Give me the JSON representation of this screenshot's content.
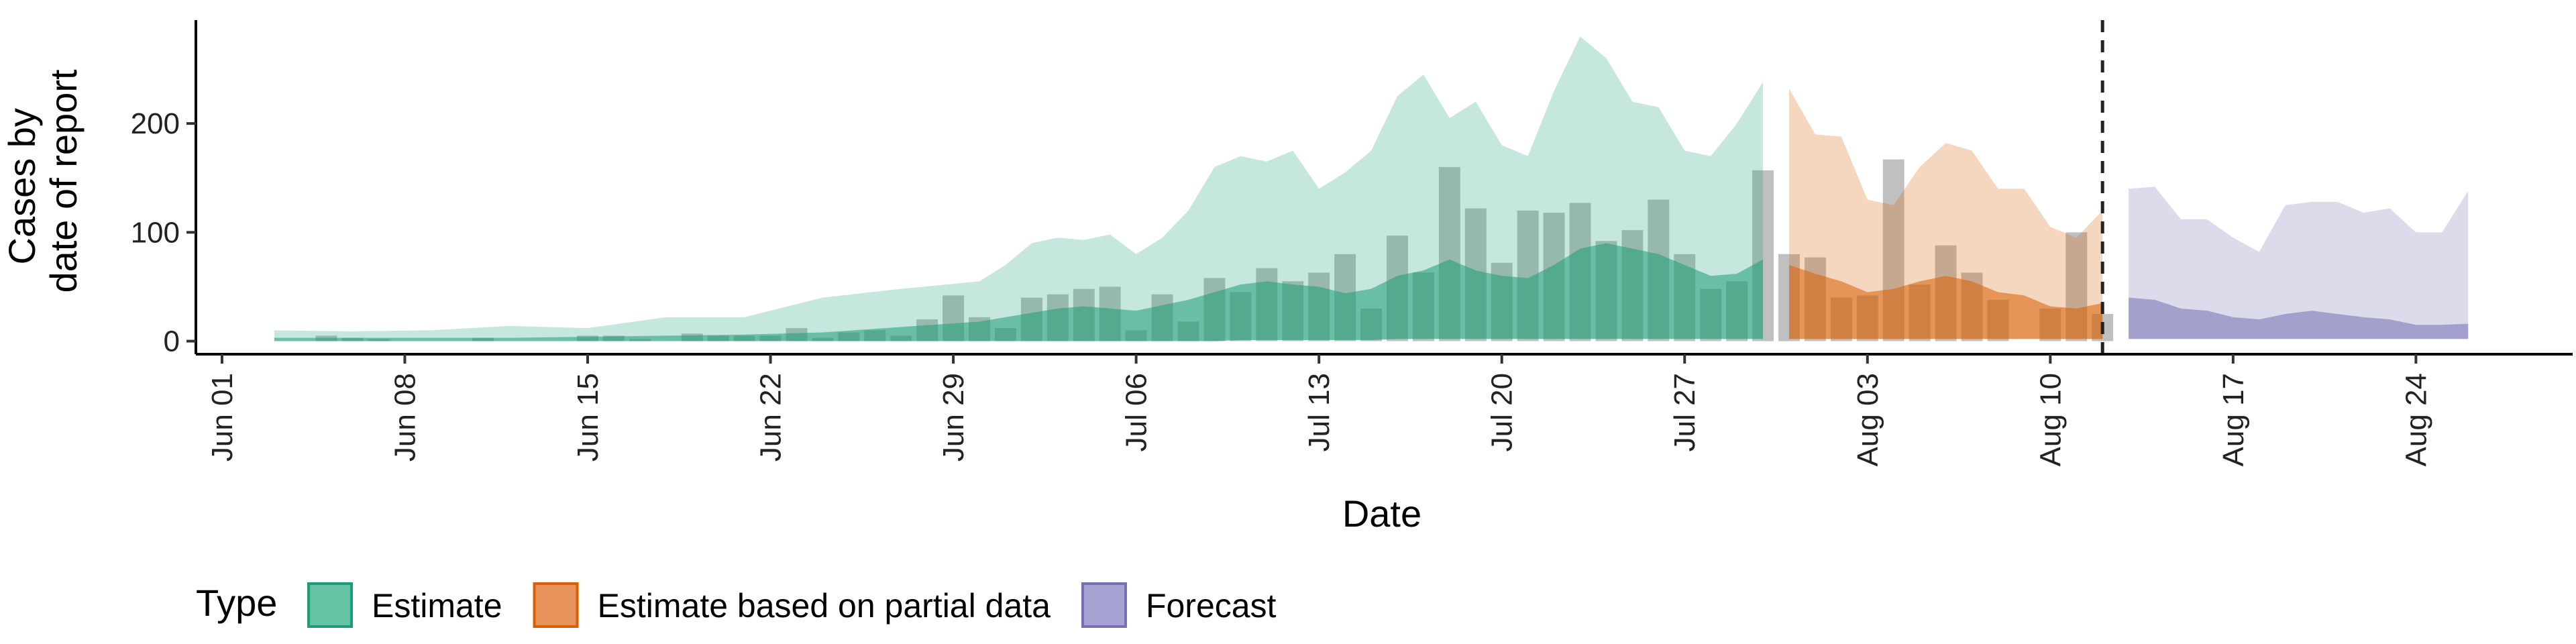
{
  "chart_data": {
    "type": "area",
    "xlabel": "Date",
    "ylabel_lines": [
      "Cases by",
      "date of report"
    ],
    "x_start_date": "2020-06-01",
    "xlim": [
      "2020-05-31",
      "2020-08-30"
    ],
    "ylim": [
      -12,
      295
    ],
    "y_ticks": [
      0,
      100,
      200
    ],
    "y_tick_labels": [
      "0",
      "100",
      "200"
    ],
    "x_ticks": [
      "2020-06-01",
      "2020-06-08",
      "2020-06-15",
      "2020-06-22",
      "2020-06-29",
      "2020-07-06",
      "2020-07-13",
      "2020-07-20",
      "2020-07-27",
      "2020-08-03",
      "2020-08-10",
      "2020-08-17",
      "2020-08-24"
    ],
    "x_tick_labels": [
      "Jun 01",
      "Jun 08",
      "Jun 15",
      "Jun 22",
      "Jun 29",
      "Jul 06",
      "Jul 13",
      "Jul 20",
      "Jul 27",
      "Aug 03",
      "Aug 10",
      "Aug 17",
      "Aug 24"
    ],
    "forecast_line_date": "2020-08-12",
    "legend": {
      "title": "Type",
      "position": "bottom-left",
      "items": [
        {
          "label": "Estimate",
          "fill": "#66c2a5",
          "stroke": "#1b9e77"
        },
        {
          "label": "Estimate based on partial data",
          "fill": "#e8935b",
          "stroke": "#d95f02"
        },
        {
          "label": "Forecast",
          "fill": "#a6a3d2",
          "stroke": "#7570b3"
        }
      ]
    },
    "colors": {
      "estimate": "#1b9e77",
      "partial": "#d95f02",
      "forecast": "#7570b3",
      "bars": "#8c8c8c"
    },
    "bars": {
      "dates": [
        "2020-06-01",
        "2020-06-02",
        "2020-06-03",
        "2020-06-04",
        "2020-06-05",
        "2020-06-06",
        "2020-06-07",
        "2020-06-08",
        "2020-06-09",
        "2020-06-10",
        "2020-06-11",
        "2020-06-12",
        "2020-06-13",
        "2020-06-14",
        "2020-06-15",
        "2020-06-16",
        "2020-06-17",
        "2020-06-18",
        "2020-06-19",
        "2020-06-20",
        "2020-06-21",
        "2020-06-22",
        "2020-06-23",
        "2020-06-24",
        "2020-06-25",
        "2020-06-26",
        "2020-06-27",
        "2020-06-28",
        "2020-06-29",
        "2020-06-30",
        "2020-07-01",
        "2020-07-02",
        "2020-07-03",
        "2020-07-04",
        "2020-07-05",
        "2020-07-06",
        "2020-07-07",
        "2020-07-08",
        "2020-07-09",
        "2020-07-10",
        "2020-07-11",
        "2020-07-12",
        "2020-07-13",
        "2020-07-14",
        "2020-07-15",
        "2020-07-16",
        "2020-07-17",
        "2020-07-18",
        "2020-07-19",
        "2020-07-20",
        "2020-07-21",
        "2020-07-22",
        "2020-07-23",
        "2020-07-24",
        "2020-07-25",
        "2020-07-26",
        "2020-07-27",
        "2020-07-28",
        "2020-07-29",
        "2020-07-30",
        "2020-07-31",
        "2020-08-01",
        "2020-08-02",
        "2020-08-03",
        "2020-08-04",
        "2020-08-05",
        "2020-08-06",
        "2020-08-07",
        "2020-08-08",
        "2020-08-09",
        "2020-08-10",
        "2020-08-11",
        "2020-08-12"
      ],
      "values": [
        0,
        0,
        0,
        0,
        5,
        3,
        2,
        0,
        0,
        0,
        3,
        0,
        0,
        0,
        5,
        5,
        2,
        0,
        7,
        5,
        5,
        5,
        12,
        3,
        8,
        10,
        5,
        20,
        42,
        22,
        12,
        40,
        43,
        48,
        50,
        10,
        43,
        18,
        58,
        45,
        67,
        55,
        63,
        80,
        30,
        97,
        63,
        160,
        122,
        72,
        120,
        118,
        127,
        92,
        102,
        130,
        80,
        48,
        55,
        157,
        80,
        77,
        40,
        42,
        167,
        52,
        88,
        63,
        38,
        0,
        30,
        100,
        25
      ]
    },
    "series": [
      {
        "name": "Estimate",
        "type": "ribbon",
        "dates": [
          "2020-06-03",
          "2020-06-06",
          "2020-06-09",
          "2020-06-12",
          "2020-06-15",
          "2020-06-18",
          "2020-06-21",
          "2020-06-24",
          "2020-06-27",
          "2020-06-30",
          "2020-07-01",
          "2020-07-02",
          "2020-07-03",
          "2020-07-04",
          "2020-07-05",
          "2020-07-06",
          "2020-07-07",
          "2020-07-08",
          "2020-07-09",
          "2020-07-10",
          "2020-07-11",
          "2020-07-12",
          "2020-07-13",
          "2020-07-14",
          "2020-07-15",
          "2020-07-16",
          "2020-07-17",
          "2020-07-18",
          "2020-07-19",
          "2020-07-20",
          "2020-07-21",
          "2020-07-22",
          "2020-07-23",
          "2020-07-24",
          "2020-07-25",
          "2020-07-26",
          "2020-07-27",
          "2020-07-28",
          "2020-07-29",
          "2020-07-30"
        ],
        "lower": [
          0,
          0,
          0,
          0,
          0,
          0,
          0,
          0,
          0,
          0,
          0,
          0,
          0,
          0,
          0,
          0,
          0,
          0,
          0,
          1,
          1,
          1,
          1,
          1,
          1,
          2,
          2,
          2,
          2,
          2,
          2,
          2,
          2,
          2,
          2,
          2,
          2,
          2,
          2,
          2
        ],
        "inner_upper": [
          3,
          3,
          3,
          3,
          4,
          5,
          6,
          8,
          13,
          18,
          22,
          26,
          30,
          32,
          30,
          28,
          33,
          38,
          45,
          52,
          55,
          52,
          50,
          44,
          48,
          60,
          65,
          75,
          65,
          60,
          58,
          70,
          85,
          90,
          85,
          80,
          70,
          60,
          62,
          75
        ],
        "upper": [
          10,
          9,
          10,
          14,
          12,
          22,
          22,
          40,
          48,
          55,
          70,
          90,
          95,
          93,
          98,
          80,
          95,
          120,
          160,
          170,
          165,
          175,
          140,
          155,
          175,
          225,
          245,
          205,
          220,
          180,
          170,
          230,
          280,
          260,
          220,
          215,
          175,
          170,
          200,
          238
        ]
      },
      {
        "name": "Estimate based on partial data",
        "type": "ribbon",
        "dates": [
          "2020-07-31",
          "2020-08-01",
          "2020-08-02",
          "2020-08-03",
          "2020-08-04",
          "2020-08-05",
          "2020-08-06",
          "2020-08-07",
          "2020-08-08",
          "2020-08-09",
          "2020-08-10",
          "2020-08-11",
          "2020-08-12"
        ],
        "lower": [
          2,
          2,
          2,
          2,
          2,
          2,
          2,
          2,
          2,
          2,
          2,
          2,
          2
        ],
        "inner_upper": [
          70,
          62,
          55,
          45,
          48,
          55,
          60,
          55,
          45,
          42,
          32,
          30,
          35
        ],
        "upper": [
          232,
          190,
          188,
          130,
          125,
          160,
          182,
          175,
          140,
          140,
          105,
          95,
          120
        ]
      },
      {
        "name": "Forecast",
        "type": "ribbon",
        "dates": [
          "2020-08-13",
          "2020-08-14",
          "2020-08-15",
          "2020-08-16",
          "2020-08-17",
          "2020-08-18",
          "2020-08-19",
          "2020-08-20",
          "2020-08-21",
          "2020-08-22",
          "2020-08-23",
          "2020-08-24",
          "2020-08-25",
          "2020-08-26"
        ],
        "lower": [
          2,
          2,
          2,
          2,
          2,
          2,
          2,
          2,
          2,
          2,
          2,
          2,
          2,
          2
        ],
        "inner_upper": [
          40,
          38,
          30,
          28,
          22,
          20,
          25,
          28,
          25,
          22,
          20,
          15,
          15,
          16
        ],
        "upper": [
          140,
          142,
          112,
          112,
          95,
          82,
          125,
          128,
          128,
          118,
          122,
          100,
          100,
          138
        ]
      }
    ]
  }
}
